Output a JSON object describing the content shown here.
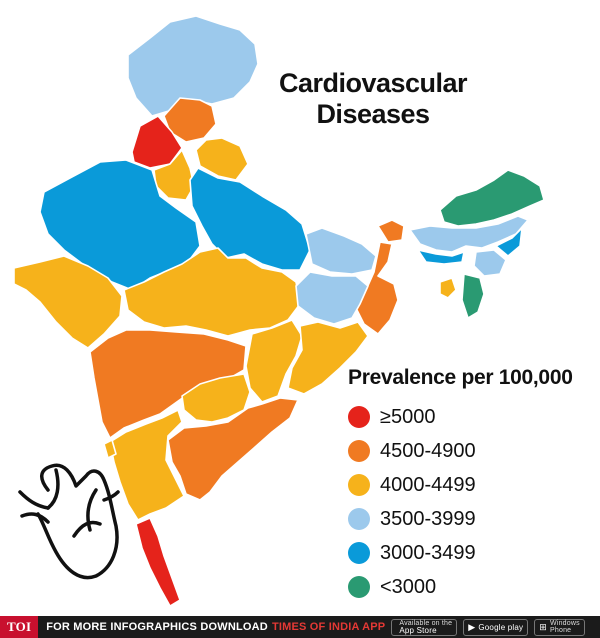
{
  "title": {
    "line1": "Cardiovascular",
    "line2": "Diseases"
  },
  "legend": {
    "title": "Prevalence per 100,000",
    "items": [
      {
        "label": "≥5000",
        "color": "#e5231b"
      },
      {
        "label": "4500-4900",
        "color": "#f07a22"
      },
      {
        "label": "4000-4499",
        "color": "#f6b21b"
      },
      {
        "label": "3500-3999",
        "color": "#9cc9ec"
      },
      {
        "label": "3000-3499",
        "color": "#0a9ad9"
      },
      {
        "label": "<3000",
        "color": "#2a9a72"
      }
    ]
  },
  "map": {
    "regions": [
      {
        "name": "jammu-kashmir",
        "category": "3500-3999"
      },
      {
        "name": "himachal-pradesh",
        "category": "4500-4900"
      },
      {
        "name": "punjab",
        "category": "≥5000"
      },
      {
        "name": "uttarakhand",
        "category": "4000-4499"
      },
      {
        "name": "haryana",
        "category": "4000-4499"
      },
      {
        "name": "rajasthan",
        "category": "3000-3499"
      },
      {
        "name": "uttar-pradesh",
        "category": "3000-3499"
      },
      {
        "name": "gujarat",
        "category": "4000-4499"
      },
      {
        "name": "madhya-pradesh",
        "category": "4000-4499"
      },
      {
        "name": "bihar",
        "category": "3500-3999"
      },
      {
        "name": "sikkim",
        "category": "4500-4900"
      },
      {
        "name": "west-bengal",
        "category": "4500-4900"
      },
      {
        "name": "jharkhand",
        "category": "3500-3999"
      },
      {
        "name": "chhattisgarh",
        "category": "4000-4499"
      },
      {
        "name": "odisha",
        "category": "4000-4499"
      },
      {
        "name": "maharashtra",
        "category": "4500-4900"
      },
      {
        "name": "telangana",
        "category": "4000-4499"
      },
      {
        "name": "andhra-pradesh",
        "category": "4500-4900"
      },
      {
        "name": "karnataka",
        "category": "4000-4499"
      },
      {
        "name": "goa",
        "category": "4000-4499"
      },
      {
        "name": "kerala",
        "category": "≥5000"
      },
      {
        "name": "tamil-nadu",
        "category": "≥5000"
      },
      {
        "name": "arunachal-pradesh",
        "category": "<3000"
      },
      {
        "name": "assam",
        "category": "3500-3999"
      },
      {
        "name": "meghalaya",
        "category": "3000-3499"
      },
      {
        "name": "nagaland",
        "category": "3000-3499"
      },
      {
        "name": "manipur",
        "category": "3500-3999"
      },
      {
        "name": "mizoram",
        "category": "<3000"
      },
      {
        "name": "tripura",
        "category": "4000-4499"
      }
    ]
  },
  "footer": {
    "logo": "TOI",
    "text": "FOR MORE  INFOGRAPHICS DOWNLOAD",
    "brand": "TIMES OF INDIA  APP",
    "stores": [
      {
        "line1": "Available on the",
        "line2": "App Store",
        "icon": "apple-icon"
      },
      {
        "line1": "",
        "line2": "Google play",
        "icon": "play-icon"
      },
      {
        "line1": "Windows",
        "line2": "Phone",
        "icon": "windows-icon"
      }
    ]
  }
}
